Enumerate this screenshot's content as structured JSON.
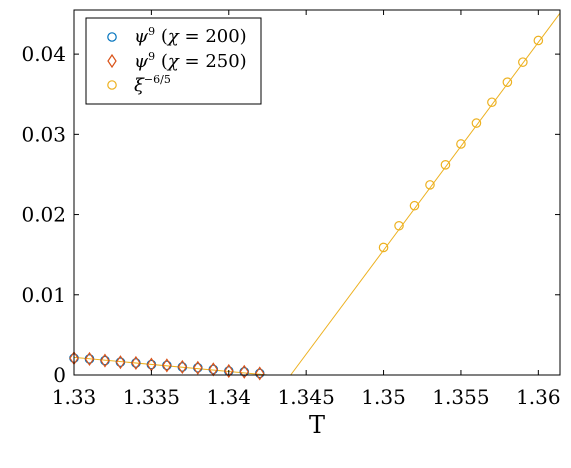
{
  "chart_data": {
    "type": "scatter",
    "title": "",
    "xlabel": "T",
    "ylabel": "",
    "xlim": [
      1.33,
      1.3614
    ],
    "ylim": [
      0,
      0.0455
    ],
    "grid": false,
    "legend_position": "top-left",
    "x_ticks": [
      1.33,
      1.335,
      1.34,
      1.345,
      1.35,
      1.355,
      1.36
    ],
    "x_tick_labels": [
      "1.33",
      "1.335",
      "1.34",
      "1.345",
      "1.35",
      "1.355",
      "1.36"
    ],
    "y_ticks": [
      0,
      0.01,
      0.02,
      0.03,
      0.04
    ],
    "y_tick_labels": [
      "0",
      "0.01",
      "0.02",
      "0.03",
      "0.04"
    ],
    "colors": {
      "chi200": "#0072BD",
      "chi250": "#D95319",
      "xi": "#EDB120"
    },
    "series": [
      {
        "name": "ψ^9 (χ = 200)",
        "legend_label": "ψ^9 (χ = 200)",
        "marker": "circle",
        "color": "#0072BD",
        "x": [
          1.33,
          1.331,
          1.332,
          1.333,
          1.334,
          1.335,
          1.336,
          1.337,
          1.338,
          1.339,
          1.34,
          1.341,
          1.342
        ],
        "y": [
          0.0021,
          0.002,
          0.0018,
          0.0016,
          0.0015,
          0.0013,
          0.0012,
          0.001,
          0.0009,
          0.0007,
          0.0005,
          0.0004,
          0.0002
        ]
      },
      {
        "name": "ψ^9 (χ = 250)",
        "legend_label": "ψ^9 (χ = 250)",
        "marker": "diamond",
        "color": "#D95319",
        "x": [
          1.33,
          1.331,
          1.332,
          1.333,
          1.334,
          1.335,
          1.336,
          1.337,
          1.338,
          1.339,
          1.34,
          1.341,
          1.342
        ],
        "y": [
          0.0021,
          0.002,
          0.0018,
          0.0016,
          0.0015,
          0.0013,
          0.0012,
          0.001,
          0.0009,
          0.0007,
          0.0005,
          0.0004,
          0.0002
        ]
      },
      {
        "name": "ξ^{-6/5}",
        "legend_label": "ξ^{−6/5}",
        "marker": "circle",
        "color": "#EDB120",
        "x": [
          1.35,
          1.351,
          1.352,
          1.353,
          1.354,
          1.355,
          1.356,
          1.357,
          1.358,
          1.359,
          1.36
        ],
        "y": [
          0.0159,
          0.0186,
          0.0211,
          0.0237,
          0.0262,
          0.0288,
          0.0314,
          0.034,
          0.0365,
          0.039,
          0.0417
        ]
      }
    ],
    "fit_lines": [
      {
        "series": "ψ^9 fit",
        "color": "#EDB120",
        "x": [
          1.33,
          1.3425
        ],
        "y": [
          0.0022,
          0.0
        ]
      },
      {
        "series": "ξ^{-6/5} fit",
        "color": "#EDB120",
        "x": [
          1.344,
          1.3614
        ],
        "y": [
          0.0,
          0.0451
        ]
      }
    ]
  }
}
